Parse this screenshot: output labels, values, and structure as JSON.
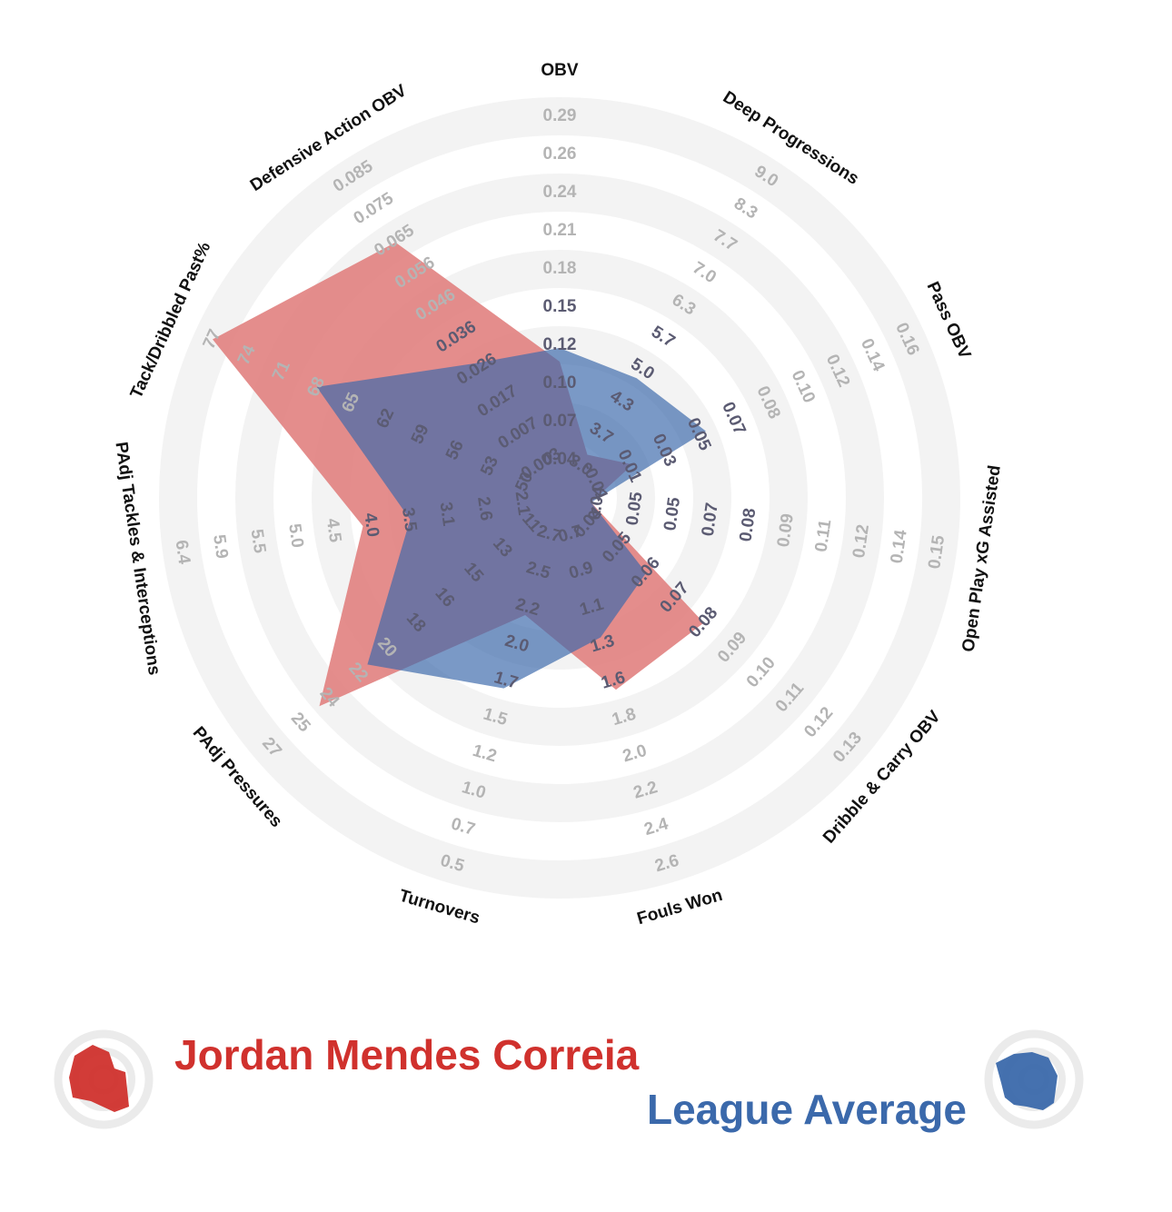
{
  "chart_data": {
    "type": "radar",
    "title": "",
    "axes": [
      {
        "name": "OBV",
        "ticks": [
          "0.04",
          "0.07",
          "0.10",
          "0.12",
          "0.15",
          "0.18",
          "0.21",
          "0.24",
          "0.26",
          "0.29"
        ],
        "range": [
          0.01,
          0.29
        ]
      },
      {
        "name": "Deep Progressions",
        "ticks": [
          "3.0",
          "3.7",
          "4.3",
          "5.0",
          "5.7",
          "6.3",
          "7.0",
          "7.7",
          "8.3",
          "9.0"
        ],
        "range": [
          2.3,
          9.0
        ]
      },
      {
        "name": "Pass OBV",
        "ticks": [
          "-0.01",
          "0.01",
          "0.03",
          "0.05",
          "0.07",
          "0.08",
          "0.10",
          "0.12",
          "0.14",
          "0.16"
        ],
        "range": [
          -0.03,
          0.16
        ]
      },
      {
        "name": "Open Play xG Assisted",
        "ticks": [
          "0.04",
          "0.05",
          "0.05",
          "0.07",
          "0.08",
          "0.09",
          "0.11",
          "0.12",
          "0.14",
          "0.15"
        ],
        "range": [
          0.03,
          0.15
        ]
      },
      {
        "name": "Dribble & Carry OBV",
        "ticks": [
          "0.04",
          "0.05",
          "0.06",
          "0.07",
          "0.08",
          "0.09",
          "0.10",
          "0.11",
          "0.12",
          "0.13"
        ],
        "range": [
          0.03,
          0.13
        ]
      },
      {
        "name": "Fouls Won",
        "ticks": [
          "0.7",
          "0.9",
          "1.1",
          "1.3",
          "1.6",
          "1.8",
          "2.0",
          "2.2",
          "2.4",
          "2.6"
        ],
        "range": [
          0.5,
          2.6
        ]
      },
      {
        "name": "Turnovers",
        "ticks": [
          "2.7",
          "2.5",
          "2.2",
          "2.0",
          "1.7",
          "1.5",
          "1.2",
          "1.0",
          "0.7",
          "0.5"
        ],
        "range": [
          3.0,
          0.5
        ]
      },
      {
        "name": "PAdj Pressures",
        "ticks": [
          "11",
          "13",
          "15",
          "16",
          "18",
          "20",
          "22",
          "24",
          "25",
          "27"
        ],
        "range": [
          9,
          27
        ]
      },
      {
        "name": "PAdj Tackles & Interceptions",
        "ticks": [
          "2.1",
          "2.6",
          "3.1",
          "3.5",
          "4.0",
          "4.5",
          "5.0",
          "5.5",
          "5.9",
          "6.4"
        ],
        "range": [
          1.6,
          6.4
        ]
      },
      {
        "name": "Tack/Dribbled Past%",
        "ticks": [
          "50",
          "53",
          "56",
          "59",
          "62",
          "65",
          "68",
          "71",
          "74",
          "77"
        ],
        "range": [
          47,
          77
        ]
      },
      {
        "name": "Defensive Action OBV",
        "ticks": [
          "-0.003",
          "0.007",
          "0.017",
          "0.026",
          "0.036",
          "0.046",
          "0.056",
          "0.065",
          "0.075",
          "0.085"
        ],
        "range": [
          -0.013,
          0.085
        ]
      }
    ],
    "series": [
      {
        "name": "Jordan Mendes Correia",
        "color": "#d0312d",
        "values": [
          0.11,
          3.2,
          0.01,
          0.04,
          0.08,
          1.6,
          2.2,
          24,
          4.1,
          77,
          0.065
        ]
      },
      {
        "name": "League Average",
        "color": "#3b69ab",
        "values": [
          0.12,
          4.8,
          0.05,
          0.04,
          0.06,
          1.3,
          1.7,
          21,
          3.5,
          68,
          0.028
        ]
      }
    ]
  },
  "legend": {
    "player": "Jordan Mendes Correia",
    "average": "League Average"
  },
  "colors": {
    "player": "#d0312d",
    "average": "#3b69ab",
    "player_fill": "#e07d7c",
    "average_fill": "#3b69ab",
    "ring": "#f1f1f1"
  }
}
